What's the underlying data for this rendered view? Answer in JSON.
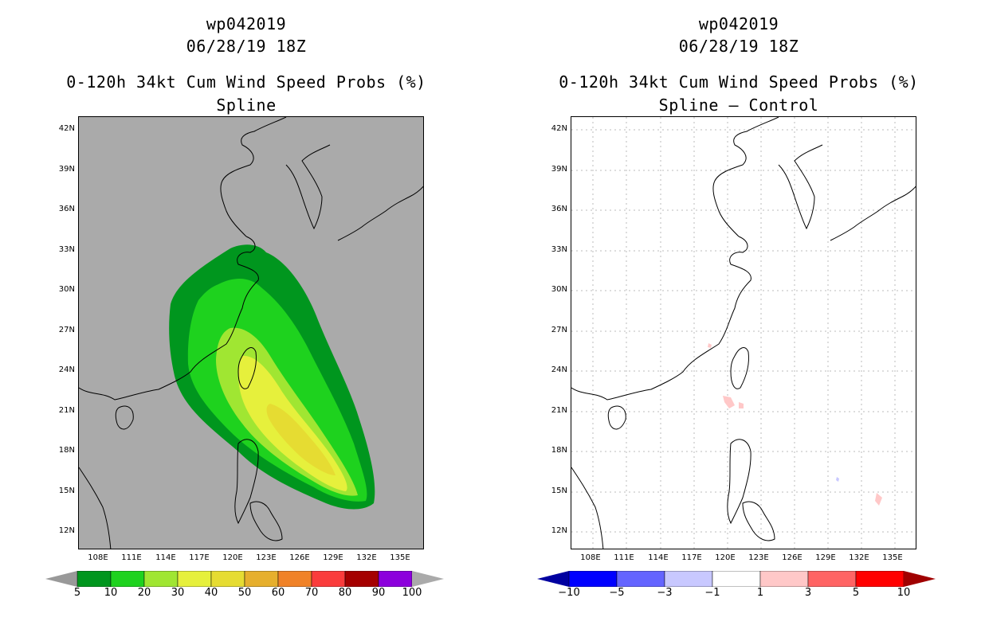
{
  "left": {
    "title": "wp042019",
    "datetime": "06/28/19 18Z",
    "subtitle": "0-120h 34kt Cum Wind Speed Probs (%)",
    "product": "Spline",
    "colorbar": {
      "labels": [
        "5",
        "10",
        "20",
        "30",
        "40",
        "50",
        "60",
        "70",
        "80",
        "90",
        "100"
      ],
      "colors": [
        "#00961e",
        "#1ed21e",
        "#a0e632",
        "#e6f03c",
        "#e6dc32",
        "#e6af2d",
        "#f08228",
        "#fa3c3c",
        "#a50000",
        "#8c00dc"
      ],
      "under": "#999999",
      "over": "#aaaaaa"
    }
  },
  "right": {
    "title": "wp042019",
    "datetime": "06/28/19 18Z",
    "subtitle": "0-120h 34kt Cum Wind Speed Probs (%)",
    "product": "Spline – Control",
    "colorbar": {
      "labels": [
        "−10",
        "−5",
        "−3",
        "−1",
        "1",
        "3",
        "5",
        "10"
      ],
      "colors": [
        "#0000ff",
        "#6464ff",
        "#c8c8ff",
        "#ffffff",
        "#ffc8c8",
        "#ff6464",
        "#ff0000"
      ],
      "under": "#0000a0",
      "over": "#a00000"
    }
  },
  "axes": {
    "lat_labels": [
      "42N",
      "39N",
      "36N",
      "33N",
      "30N",
      "27N",
      "24N",
      "21N",
      "18N",
      "15N",
      "12N"
    ],
    "lon_labels": [
      "108E",
      "111E",
      "114E",
      "117E",
      "120E",
      "123E",
      "126E",
      "129E",
      "132E",
      "135E"
    ]
  },
  "colors": {
    "ocean_gray": "#aaaaaa",
    "grid_dots": "#bbbbbb"
  }
}
